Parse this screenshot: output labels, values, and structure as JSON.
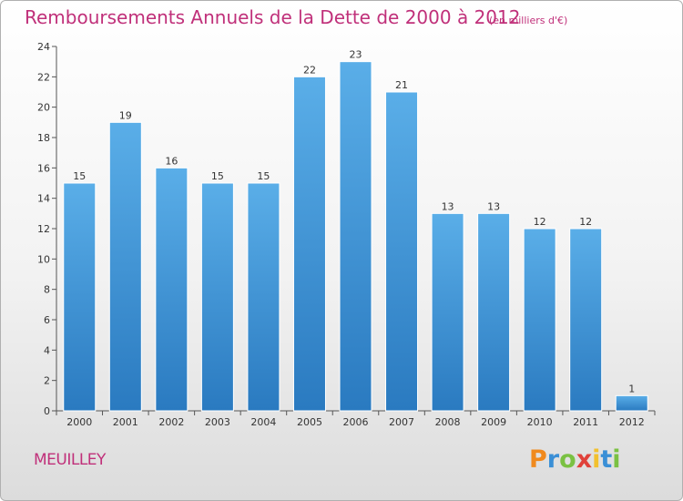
{
  "title": "Remboursements Annuels de la Dette de 2000 à 2012",
  "subtitle": "(en milliers d'€)",
  "commune": "MEUILLEY",
  "logo": {
    "letters": [
      "P",
      "r",
      "o",
      "x",
      "i",
      "t",
      "i"
    ],
    "colors": [
      "#f08a1e",
      "#3a8fd6",
      "#7ac142",
      "#e0413a",
      "#f2c12e",
      "#3a8fd6",
      "#7ac142"
    ]
  },
  "colors": {
    "bar_top": "#5aaee8",
    "bar_bottom": "#2a7ac0",
    "title": "#c0307a"
  },
  "chart_data": {
    "type": "bar",
    "title": "Remboursements Annuels de la Dette de 2000 à 2012",
    "subtitle": "(en milliers d'€)",
    "categories": [
      "2000",
      "2001",
      "2002",
      "2003",
      "2004",
      "2005",
      "2006",
      "2007",
      "2008",
      "2009",
      "2010",
      "2011",
      "2012"
    ],
    "values": [
      15,
      19,
      16,
      15,
      15,
      22,
      23,
      21,
      13,
      13,
      12,
      12,
      1
    ],
    "ylim": [
      0,
      24
    ],
    "yticks": [
      0,
      2,
      4,
      6,
      8,
      10,
      12,
      14,
      16,
      18,
      20,
      22,
      24
    ],
    "grid": false,
    "data_labels": true
  }
}
